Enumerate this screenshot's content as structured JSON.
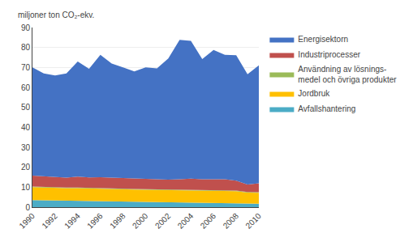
{
  "chart_data": {
    "type": "area",
    "stacked": true,
    "ylabel": "miljoner ton CO₂-ekv.",
    "x": [
      1990,
      1991,
      1992,
      1993,
      1994,
      1995,
      1996,
      1997,
      1998,
      1999,
      2000,
      2001,
      2002,
      2003,
      2004,
      2005,
      2006,
      2007,
      2008,
      2009,
      2010
    ],
    "series": [
      {
        "name": "Avfallshantering",
        "color": "#4bacc6",
        "values": [
          3.5,
          3.4,
          3.3,
          3.2,
          3.1,
          3.0,
          2.9,
          2.8,
          2.7,
          2.6,
          2.5,
          2.4,
          2.3,
          2.2,
          2.2,
          2.1,
          2.0,
          2.0,
          2.0,
          1.8,
          1.7
        ]
      },
      {
        "name": "Jordbruk",
        "color": "#ffc000",
        "values": [
          6.5,
          6.4,
          6.3,
          6.3,
          6.4,
          6.3,
          6.3,
          6.2,
          6.2,
          6.2,
          6.2,
          6.2,
          6.2,
          6.2,
          6.3,
          6.3,
          6.3,
          6.2,
          6.0,
          5.5,
          5.5
        ]
      },
      {
        "name": "Användning av lösnings-\nmedel och övriga produkter",
        "color": "#9bbb59",
        "values": [
          0.3,
          0.3,
          0.3,
          0.3,
          0.3,
          0.3,
          0.3,
          0.3,
          0.3,
          0.3,
          0.3,
          0.3,
          0.3,
          0.3,
          0.3,
          0.3,
          0.3,
          0.3,
          0.3,
          0.3,
          0.3
        ]
      },
      {
        "name": "Industriprocesser",
        "color": "#c0504d",
        "values": [
          5.5,
          5.4,
          5.0,
          5.0,
          5.5,
          5.3,
          5.5,
          5.5,
          5.3,
          5.2,
          5.2,
          5.0,
          5.0,
          5.3,
          5.5,
          5.3,
          5.5,
          5.5,
          5.0,
          3.8,
          4.5
        ]
      },
      {
        "name": "Energisektorn",
        "color": "#4472c4",
        "values": [
          54.2,
          51.5,
          51.1,
          52.2,
          57.7,
          54.4,
          61.3,
          57.2,
          55.5,
          53.7,
          55.8,
          55.6,
          60.7,
          69.8,
          69.0,
          60.2,
          64.7,
          62.3,
          62.8,
          55.2,
          59.0
        ]
      }
    ],
    "xlim": [
      1990,
      2010
    ],
    "xticks": [
      1990,
      1992,
      1994,
      1996,
      1998,
      2000,
      2002,
      2004,
      2006,
      2008,
      2010
    ],
    "ylim": [
      0,
      90
    ],
    "yticks": [
      0,
      10,
      20,
      30,
      40,
      50,
      60,
      70,
      80,
      90
    ],
    "grid": true,
    "legend": "right"
  }
}
